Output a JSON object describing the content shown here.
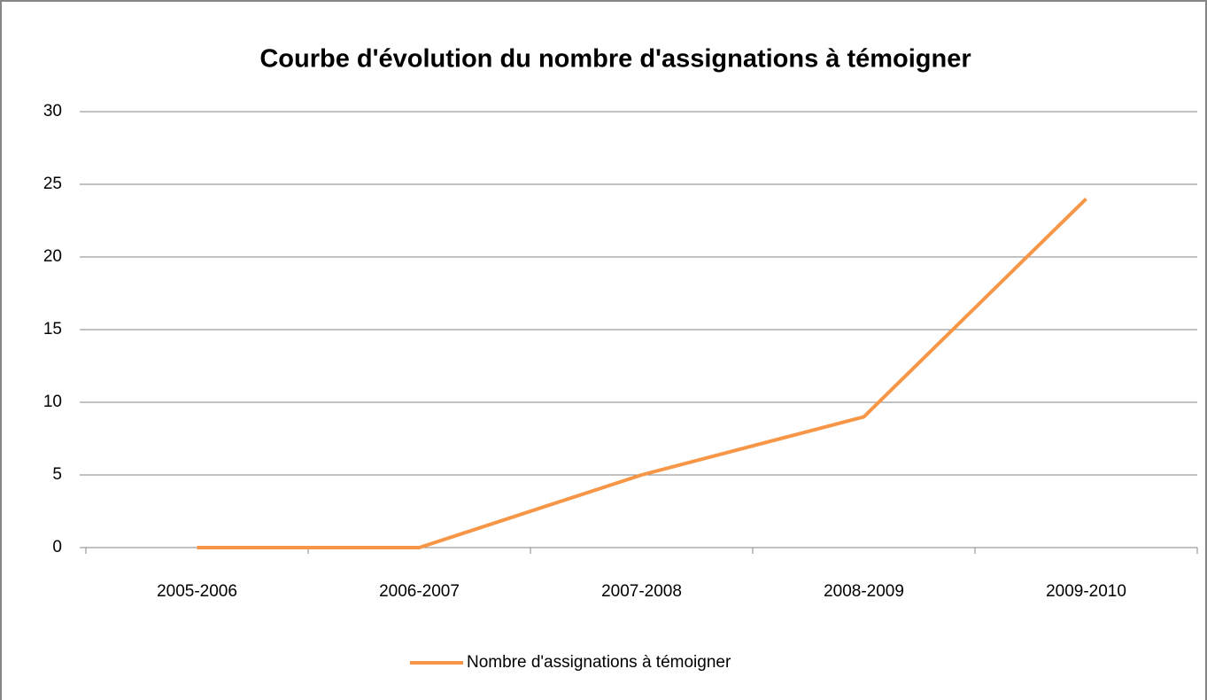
{
  "chart_data": {
    "type": "line",
    "title": "Courbe d'évolution du nombre d'assignations à témoigner",
    "categories": [
      "2005-2006",
      "2006-2007",
      "2007-2008",
      "2008-2009",
      "2009-2010"
    ],
    "series": [
      {
        "name": "Nombre d'assignations à témoigner",
        "color": "#f79646",
        "values": [
          0,
          0,
          5,
          9,
          24
        ]
      }
    ],
    "ylim": [
      0,
      30
    ],
    "yticks": [
      0,
      5,
      10,
      15,
      20,
      25,
      30
    ],
    "grid": true,
    "legend": "bottom"
  }
}
